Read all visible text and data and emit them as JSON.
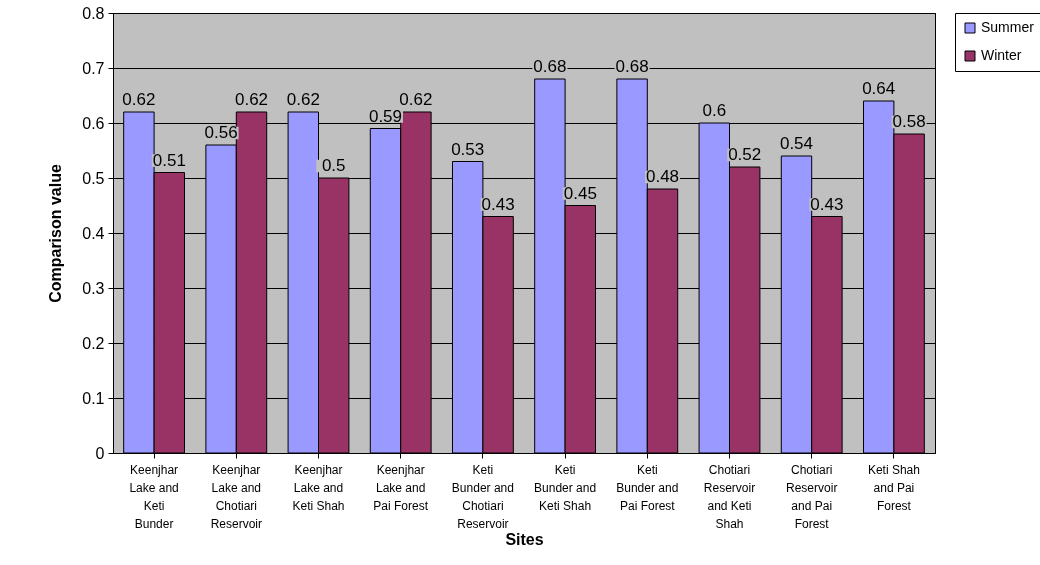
{
  "chart_data": {
    "type": "bar",
    "xlabel": "Sites",
    "ylabel": "Comparison value",
    "categories": [
      "Keenjhar Lake and Keti Bunder",
      "Keenjhar Lake and Chotiari Reservoir",
      "Keenjhar Lake and Keti Shah",
      "Keenjhar Lake and Pai Forest",
      "Keti Bunder and Chotiari Reservoir",
      "Keti Bunder and Keti Shah",
      "Keti Bunder and Pai Forest",
      "Chotiari Reservoir and Keti Shah",
      "Chotiari Reservoir and Pai Forest",
      "Keti Shah and Pai Forest"
    ],
    "series": [
      {
        "name": "Summer",
        "color": "#9999ff",
        "values": [
          0.62,
          0.56,
          0.62,
          0.59,
          0.53,
          0.68,
          0.68,
          0.6,
          0.54,
          0.64
        ]
      },
      {
        "name": "Winter",
        "color": "#993366",
        "values": [
          0.51,
          0.62,
          0.5,
          0.62,
          0.43,
          0.45,
          0.48,
          0.52,
          0.43,
          0.58
        ]
      }
    ],
    "ylim": [
      0,
      0.8
    ],
    "yticks": [
      0,
      0.1,
      0.2,
      0.3,
      0.4,
      0.5,
      0.6,
      0.7,
      0.8
    ],
    "grid": "y",
    "legend": "right",
    "data_labels": true
  }
}
